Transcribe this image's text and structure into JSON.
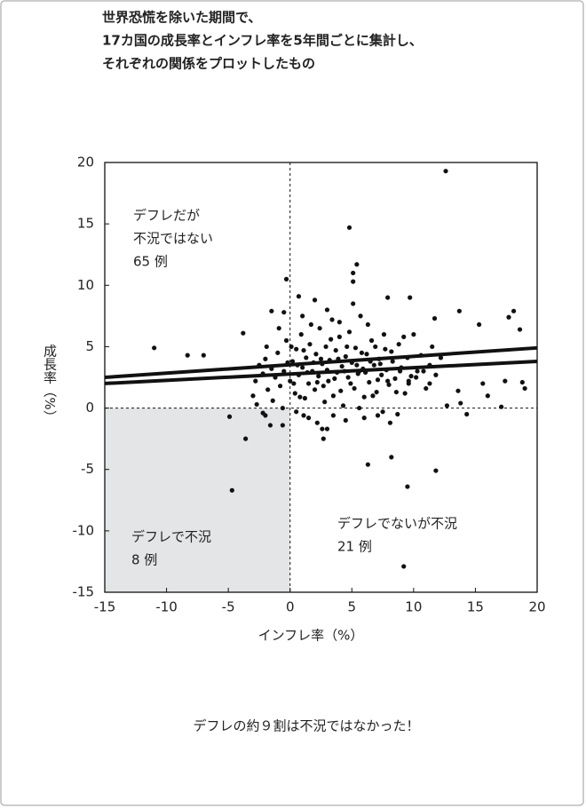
{
  "chart_data": {
    "type": "scatter",
    "title": [
      "世界恐慌を除いた期間で、",
      "17カ国の成長率とインフレ率を5年間ごとに集計し、",
      "それぞれの関係をプロットしたもの"
    ],
    "x_label": "インフレ率（%）",
    "y_label": "成長率（%）",
    "caption": "デフレの約９割は不況ではなかった！",
    "annotations": [
      {
        "lines": [
          "デフレだが",
          "不況ではない",
          "65 例"
        ]
      },
      {
        "lines": [
          "デフレで不況",
          "8 例"
        ]
      },
      {
        "lines": [
          "デフレでないが不況",
          "21 例"
        ]
      }
    ],
    "xlim": [
      -15,
      20
    ],
    "ylim": [
      -15,
      20
    ],
    "xticks": [
      -15,
      -10,
      -5,
      0,
      5,
      10,
      15,
      20
    ],
    "yticks": [
      -15,
      -10,
      -5,
      0,
      5,
      10,
      15,
      20
    ],
    "zero_lines": true,
    "shade_color": "#e4e5e7",
    "color": "#111111",
    "points": {
      "x": [
        12.6,
        4.8,
        5.4,
        5.1,
        5.1,
        -0.3,
        -11.0,
        -8.3,
        -7.0,
        -3.8,
        -1.5,
        0.7,
        7.9,
        9.7,
        13.7,
        11.7,
        17.7,
        18.1,
        18.6,
        15.3,
        -4.9,
        -3.6,
        -4.7,
        6.3,
        8.2,
        9.5,
        11.8,
        9.2,
        17.1,
        15.6,
        18.8,
        19.0,
        17.4,
        16.0,
        13.6,
        14.3,
        13.8,
        12.7,
        11.3,
        9.6,
        8.7,
        7.1,
        8.1,
        2.6,
        2.7,
        3.0,
        1.1,
        -1.6,
        -2.0,
        -0.6,
        5.6,
        -2.5,
        -2.2,
        -2.0,
        -1.8,
        -1.5,
        -1.2,
        -1.0,
        -0.8,
        -0.5,
        -0.3,
        0.0,
        0.2,
        0.4,
        0.5,
        0.7,
        0.9,
        1.0,
        1.2,
        1.3,
        1.5,
        1.6,
        1.8,
        2.0,
        2.1,
        2.3,
        2.4,
        2.6,
        2.8,
        2.9,
        3.1,
        3.2,
        3.4,
        3.5,
        3.7,
        3.8,
        4.0,
        4.2,
        4.3,
        4.5,
        4.7,
        4.8,
        5.0,
        5.2,
        5.3,
        5.5,
        5.7,
        5.9,
        6.0,
        6.2,
        6.4,
        6.6,
        6.8,
        7.0,
        7.2,
        7.4,
        7.6,
        7.8,
        8.0,
        8.2,
        8.5,
        8.8,
        9.0,
        9.3,
        9.5,
        9.8,
        10.0,
        10.3,
        10.6,
        11.0,
        11.3,
        11.8,
        12.2,
        -3.0,
        -2.8,
        -2.7,
        -2.2,
        -1.9,
        -1.4,
        -0.9,
        -0.6,
        -0.2,
        0.1,
        0.3,
        0.6,
        0.8,
        1.1,
        1.4,
        1.7,
        1.9,
        2.2,
        2.5,
        2.7,
        3.0,
        3.3,
        3.6,
        3.9,
        4.1,
        4.4,
        4.6,
        4.9,
        5.1,
        5.4,
        5.6,
        5.8,
        6.1,
        6.3,
        6.5,
        6.7,
        6.9,
        7.1,
        7.3,
        7.7,
        7.9,
        8.3,
        8.6,
        8.9,
        9.2,
        9.6,
        10.2,
        10.8,
        11.5,
        1.0,
        2.0,
        3.0,
        4.0,
        -0.5,
        3.5,
        4.5,
        2.2,
        1.5,
        0.5,
        6.0,
        7.5
      ],
      "y": [
        19.3,
        14.7,
        11.7,
        11.0,
        10.3,
        10.5,
        4.9,
        4.3,
        4.3,
        6.1,
        7.9,
        9.1,
        9.0,
        9.0,
        7.9,
        7.3,
        7.4,
        7.9,
        6.4,
        6.8,
        -0.7,
        -2.5,
        -6.7,
        -4.6,
        -4.0,
        -6.4,
        -5.1,
        -12.9,
        0.1,
        2.0,
        2.1,
        1.6,
        2.2,
        1.0,
        1.4,
        -0.5,
        0.4,
        0.2,
        2.0,
        2.2,
        -0.5,
        -0.6,
        -1.2,
        -1.7,
        -2.5,
        -1.7,
        -0.6,
        -1.4,
        -0.6,
        -1.4,
        3.0,
        3.5,
        2.8,
        4.0,
        1.5,
        3.2,
        2.5,
        4.5,
        1.8,
        3.0,
        5.5,
        2.2,
        3.8,
        1.2,
        4.8,
        2.7,
        6.0,
        3.3,
        0.8,
        4.1,
        2.0,
        5.2,
        3.0,
        1.5,
        4.4,
        2.6,
        6.5,
        3.6,
        0.5,
        5.0,
        2.2,
        3.9,
        7.2,
        1.0,
        4.7,
        2.9,
        5.8,
        3.4,
        0.2,
        4.2,
        2.5,
        6.2,
        3.7,
        1.6,
        4.9,
        2.8,
        7.5,
        3.2,
        0.9,
        4.4,
        2.1,
        5.5,
        3.5,
        1.3,
        4.0,
        2.7,
        6.0,
        3.1,
        1.9,
        4.6,
        2.4,
        5.2,
        3.3,
        1.2,
        4.1,
        2.6,
        6.0,
        3.0,
        4.3,
        1.6,
        3.5,
        2.7,
        4.1,
        1.0,
        2.2,
        0.3,
        -0.4,
        5.0,
        0.6,
        6.5,
        0.0,
        3.7,
        5.0,
        2.0,
        3.5,
        0.9,
        4.7,
        2.9,
        6.8,
        3.7,
        2.1,
        4.0,
        1.8,
        3.1,
        5.6,
        2.4,
        4.0,
        1.4,
        3.0,
        5.0,
        2.0,
        8.5,
        3.5,
        0.0,
        4.5,
        2.9,
        6.8,
        3.8,
        1.0,
        5.0,
        2.3,
        3.6,
        4.8,
        2.2,
        3.8,
        1.3,
        3.0,
        5.8,
        2.0,
        2.5,
        3.0,
        5.0,
        7.5,
        8.8,
        8.0,
        7.0,
        7.8,
        -0.6,
        -1.0,
        -1.2,
        -0.8,
        -0.3,
        -0.8,
        -0.3
      ]
    },
    "fit_lines": [
      {
        "x": [
          -15,
          20
        ],
        "y": [
          2.5,
          4.9
        ]
      },
      {
        "x": [
          -15,
          20
        ],
        "y": [
          2.0,
          3.8
        ]
      }
    ]
  }
}
